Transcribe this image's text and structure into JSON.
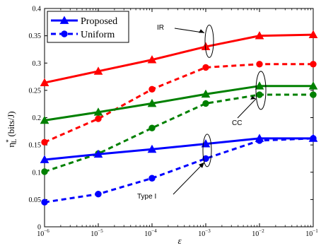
{
  "chart_data": {
    "type": "line",
    "x": [
      "1e-6",
      "1e-5",
      "1e-4",
      "1e-3",
      "1e-2",
      "1e-1"
    ],
    "x_log": true,
    "xlim": [
      1e-06,
      0.1
    ],
    "ylim": [
      0,
      0.4
    ],
    "grid": false,
    "xlabel": "ε",
    "ylabel": "η*L (bits/J)",
    "xticks": [
      {
        "base": "10",
        "exp": "−6"
      },
      {
        "base": "10",
        "exp": "−5"
      },
      {
        "base": "10",
        "exp": "−4"
      },
      {
        "base": "10",
        "exp": "−3"
      },
      {
        "base": "10",
        "exp": "−2"
      },
      {
        "base": "10",
        "exp": "−1"
      }
    ],
    "yticks": [
      "0",
      "0.05",
      "0.1",
      "0.15",
      "0.2",
      "0.25",
      "0.3",
      "0.35",
      "0.4"
    ],
    "legend": {
      "placement": "top-left",
      "entries": [
        {
          "label": "Proposed",
          "marker": "triangle",
          "style": "solid"
        },
        {
          "label": "Uniform",
          "marker": "circle",
          "style": "dashed"
        }
      ]
    },
    "series": [
      {
        "group": "IR",
        "scheme": "Proposed",
        "color": "#ff0000",
        "style": "solid",
        "marker": "triangle",
        "values": [
          0.264,
          0.285,
          0.306,
          0.33,
          0.35,
          0.352
        ]
      },
      {
        "group": "IR",
        "scheme": "Uniform",
        "color": "#ff0000",
        "style": "dashed",
        "marker": "circle",
        "values": [
          0.155,
          0.198,
          0.252,
          0.292,
          0.298,
          0.298
        ]
      },
      {
        "group": "CC",
        "scheme": "Proposed",
        "color": "#008000",
        "style": "solid",
        "marker": "triangle",
        "values": [
          0.195,
          0.21,
          0.226,
          0.243,
          0.258,
          0.258
        ]
      },
      {
        "group": "CC",
        "scheme": "Uniform",
        "color": "#008000",
        "style": "dashed",
        "marker": "circle",
        "values": [
          0.101,
          0.134,
          0.181,
          0.226,
          0.242,
          0.242
        ]
      },
      {
        "group": "Type I",
        "scheme": "Proposed",
        "color": "#0000ff",
        "style": "solid",
        "marker": "triangle",
        "values": [
          0.123,
          0.133,
          0.142,
          0.152,
          0.162,
          0.162
        ]
      },
      {
        "group": "Type I",
        "scheme": "Uniform",
        "color": "#0000ff",
        "style": "dashed",
        "marker": "circle",
        "values": [
          0.045,
          0.06,
          0.089,
          0.125,
          0.158,
          0.162
        ]
      }
    ],
    "annotations": [
      {
        "text": "IR",
        "group": "IR",
        "x": "1e-3",
        "y_center": 0.34
      },
      {
        "text": "CC",
        "group": "CC",
        "x": "1e-2",
        "y_center": 0.25
      },
      {
        "text": "Type I",
        "group": "Type I",
        "x": "1e-3",
        "y_center": 0.14
      }
    ]
  }
}
